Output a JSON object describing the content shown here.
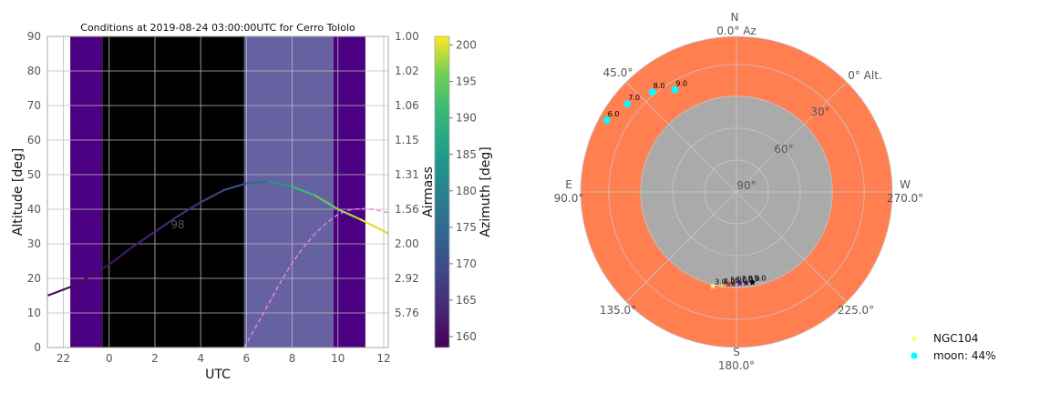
{
  "chart_data": [
    {
      "type": "line",
      "title": "Conditions at 2019-08-24 03:00:00UTC for Cerro Tololo",
      "xlabel": "UTC",
      "ylabel": "Altitude [deg]",
      "ylabel_right": "Airmass",
      "xlim_hours_relative": [
        -2.7,
        12.2
      ],
      "x_tick_labels": [
        "22",
        "0",
        "2",
        "4",
        "6",
        "8",
        "10",
        "12"
      ],
      "ylim": [
        0,
        90
      ],
      "y_ticks": [
        0,
        10,
        20,
        30,
        40,
        50,
        60,
        70,
        80,
        90
      ],
      "airmass_tick_labels": [
        "1.00",
        "1.02",
        "1.06",
        "1.15",
        "1.31",
        "1.56",
        "2.00",
        "2.92",
        "5.76"
      ],
      "grid": true,
      "night_shading": [
        {
          "from": -1.7,
          "to": -0.3,
          "color": "#4b0082"
        },
        {
          "from": -0.3,
          "to": 5.9,
          "color": "#000000"
        },
        {
          "from": 5.9,
          "to": 9.8,
          "color": "#6661a0"
        },
        {
          "from": 9.8,
          "to": 11.2,
          "color": "#4b0082"
        }
      ],
      "annotation": {
        "text": "98",
        "x": 3.0,
        "y": 35.5,
        "color": "#2ab07f"
      },
      "series": [
        {
          "style": "solid-colormap",
          "x": [
            -2.7,
            -1.5,
            0,
            1,
            2,
            3,
            4,
            5,
            6,
            7,
            8,
            9,
            10,
            11,
            12.2
          ],
          "y": [
            15,
            18,
            24,
            29,
            33.5,
            38,
            42,
            45.5,
            47.5,
            48,
            46.5,
            44,
            40,
            37,
            33
          ],
          "azimuth": [
            159.5,
            160,
            161,
            162,
            163,
            164,
            166,
            168,
            172,
            180,
            188,
            193,
            197,
            199,
            201
          ]
        },
        {
          "style": "dashed",
          "color": "#ee82ee",
          "x": [
            5.9,
            6.5,
            7,
            7.5,
            8,
            8.5,
            9,
            9.5,
            10,
            10.5,
            11,
            11.5,
            12.2
          ],
          "y": [
            0,
            7,
            13,
            19,
            24.5,
            29,
            33,
            36,
            38.5,
            39.8,
            40.2,
            40,
            39
          ]
        }
      ]
    },
    {
      "type": "heatmap",
      "role": "colorbar",
      "label": "Azimuth [deg]",
      "range": [
        158.5,
        201.2
      ],
      "tick_labels": [
        "160",
        "165",
        "170",
        "175",
        "180",
        "185",
        "190",
        "195",
        "200"
      ],
      "tick_values": [
        160,
        165,
        170,
        175,
        180,
        185,
        190,
        195,
        200
      ],
      "colormap": "viridis"
    },
    {
      "type": "scatter",
      "projection": "polar",
      "outer_color": "#ff7f50",
      "inner_color": "#aaaaaa",
      "inner_threshold_zenith_deg": 60,
      "cardinals": {
        "N": "N",
        "N_sub": "0.0° Az",
        "E": "E",
        "E_sub": "90.0°",
        "S": "S",
        "S_sub": "180.0°",
        "W": "W",
        "W_sub": "270.0°"
      },
      "angle_labels": [
        "45.0°",
        "135.0°",
        "225.0°"
      ],
      "radial_labels": [
        "0° Alt.",
        "30°",
        "60°",
        "90°"
      ],
      "targets": [
        {
          "label": "3.0",
          "az": 166,
          "alt": 29,
          "color": "#fdf08a"
        },
        {
          "label": "4.0",
          "az": 171,
          "alt": 30.5,
          "color": "#f5c46a"
        },
        {
          "label": "5.0",
          "az": 175,
          "alt": 31.7,
          "color": "#c0362c"
        },
        {
          "label": "6.0",
          "az": 178,
          "alt": 32.3,
          "color": "#802020"
        },
        {
          "label": "7.0",
          "az": 182,
          "alt": 32.6,
          "color": "#5a1a70"
        },
        {
          "label": "8.0",
          "az": 186,
          "alt": 32.5,
          "color": "#301060"
        },
        {
          "label": "9.0",
          "az": 190,
          "alt": 32.2,
          "color": "#000000"
        }
      ],
      "moon": [
        {
          "label": "6.0",
          "az": 61,
          "alt": -3
        },
        {
          "label": "7.0",
          "az": 51,
          "alt": 2
        },
        {
          "label": "8.0",
          "az": 40,
          "alt": 8
        },
        {
          "label": "9.0",
          "az": 31,
          "alt": 15
        }
      ],
      "legend": [
        {
          "label": "NGC104",
          "color": "#ffff66",
          "marker": "star"
        },
        {
          "label": "moon: 44%",
          "color": "#00ffff",
          "marker": "circle"
        }
      ],
      "legend_position": "bottom-right"
    }
  ]
}
